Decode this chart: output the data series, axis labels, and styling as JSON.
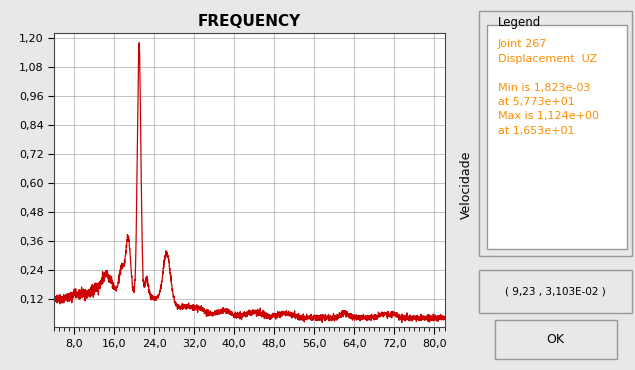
{
  "title": "FREQUENCY",
  "ylabel": "Velocidade",
  "xlim": [
    4.0,
    82.0
  ],
  "ylim": [
    0.0,
    1.22
  ],
  "xticks": [
    8.0,
    16.0,
    24.0,
    32.0,
    40.0,
    48.0,
    56.0,
    64.0,
    72.0,
    80.0
  ],
  "yticks": [
    0.12,
    0.24,
    0.36,
    0.48,
    0.6,
    0.72,
    0.84,
    0.96,
    1.08,
    1.2
  ],
  "line_color": "#cc0000",
  "bg_color": "#e8e8e8",
  "plot_bg_color": "#ffffff",
  "grid_color": "#aaaaaa",
  "legend_title": "Legend",
  "legend_line1": "Joint 267",
  "legend_line2": "Displacement  UZ",
  "legend_line3": "Min is 1,823e-03",
  "legend_line4": "at 5,773e+01",
  "legend_line5": "Max is 1,124e+00",
  "legend_line6": "at 1,653e+01",
  "coord_text": "( 9,23 , 3,103E-02 )",
  "ok_text": "OK",
  "legend_color": "#ff8c00",
  "title_fontsize": 11,
  "tick_fontsize": 8
}
